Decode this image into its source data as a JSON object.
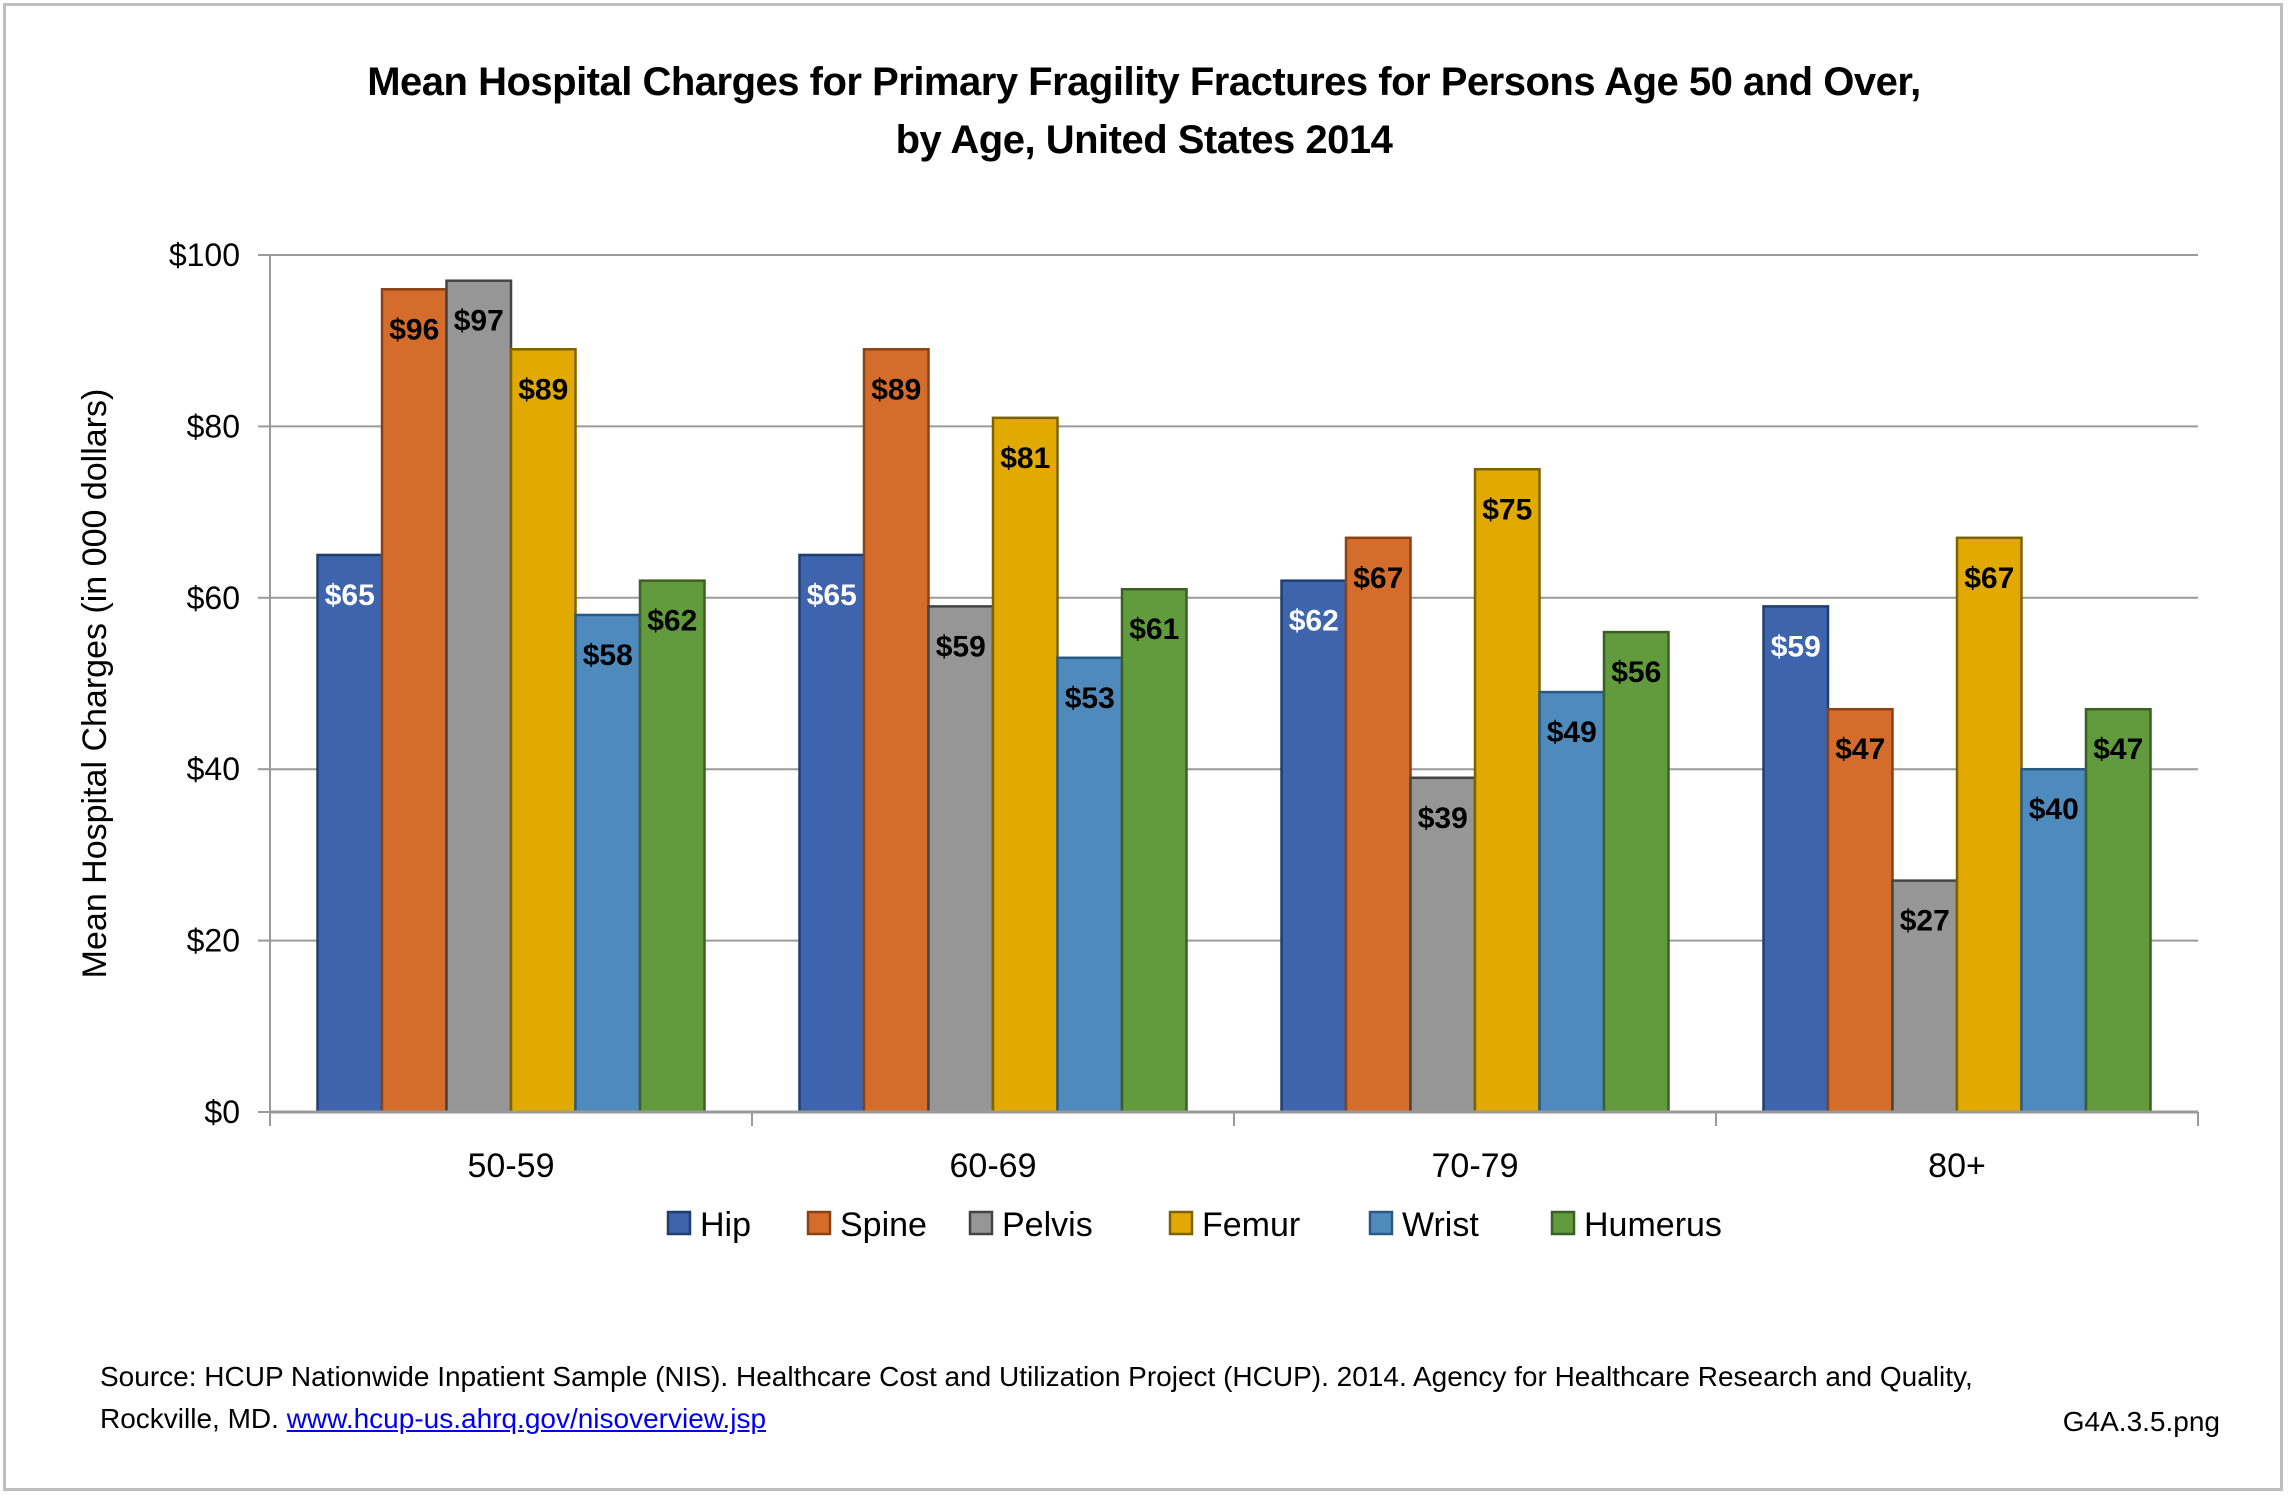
{
  "chart_data": {
    "type": "bar",
    "title": "Mean Hospital Charges for Primary Fragility Fractures for Persons Age 50 and Over, by Age, United States 2014",
    "title_lines": [
      "Mean Hospital Charges for Primary Fragility Fractures for Persons Age 50 and Over,",
      "by Age, United States 2014"
    ],
    "xlabel": "",
    "ylabel": "Mean Hospital Charges (in 000 dollars)",
    "ylim": [
      0,
      100
    ],
    "yticks": [
      0,
      20,
      40,
      60,
      80,
      100
    ],
    "ytick_labels": [
      "$0",
      "$20",
      "$40",
      "$60",
      "$80",
      "$100"
    ],
    "grid": true,
    "legend_position": "bottom",
    "categories": [
      "50-59",
      "60-69",
      "70-79",
      "80+"
    ],
    "series": [
      {
        "name": "Hip",
        "color": "#3d64ad",
        "edge": "#203f6e",
        "label_color": "#ffffff",
        "values": [
          65,
          65,
          62,
          59
        ],
        "labels": [
          "$65",
          "$65",
          "$62",
          "$59"
        ]
      },
      {
        "name": "Spine",
        "color": "#d46d2c",
        "edge": "#8a4214",
        "label_color": "#000000",
        "values": [
          96,
          89,
          67,
          47
        ],
        "labels": [
          "$96",
          "$89",
          "$67",
          "$47"
        ]
      },
      {
        "name": "Pelvis",
        "color": "#969696",
        "edge": "#444444",
        "label_color": "#000000",
        "values": [
          97,
          59,
          39,
          27
        ],
        "labels": [
          "$97",
          "$59",
          "$39",
          "$27"
        ]
      },
      {
        "name": "Femur",
        "color": "#e2aa00",
        "edge": "#7d6200",
        "label_color": "#000000",
        "values": [
          89,
          81,
          75,
          67
        ],
        "labels": [
          "$89",
          "$81",
          "$75",
          "$67"
        ]
      },
      {
        "name": "Wrist",
        "color": "#4f8abd",
        "edge": "#2a5a84",
        "label_color": "#000000",
        "values": [
          58,
          53,
          49,
          40
        ],
        "labels": [
          "$58",
          "$53",
          "$49",
          "$40"
        ]
      },
      {
        "name": "Humerus",
        "color": "#629a3e",
        "edge": "#3c5f23",
        "label_color": "#000000",
        "values": [
          62,
          61,
          56,
          47
        ],
        "labels": [
          "$62",
          "$61",
          "$56",
          "$47"
        ]
      }
    ]
  },
  "footer": {
    "source_text": "Source: HCUP Nationwide Inpatient Sample (NIS). Healthcare Cost and Utilization Project (HCUP). 2014. Agency for Healthcare Research and Quality, Rockville, MD.",
    "source_link": "www.hcup-us.ahrq.gov/nisoverview.jsp",
    "file_id": "G4A.3.5.png"
  }
}
